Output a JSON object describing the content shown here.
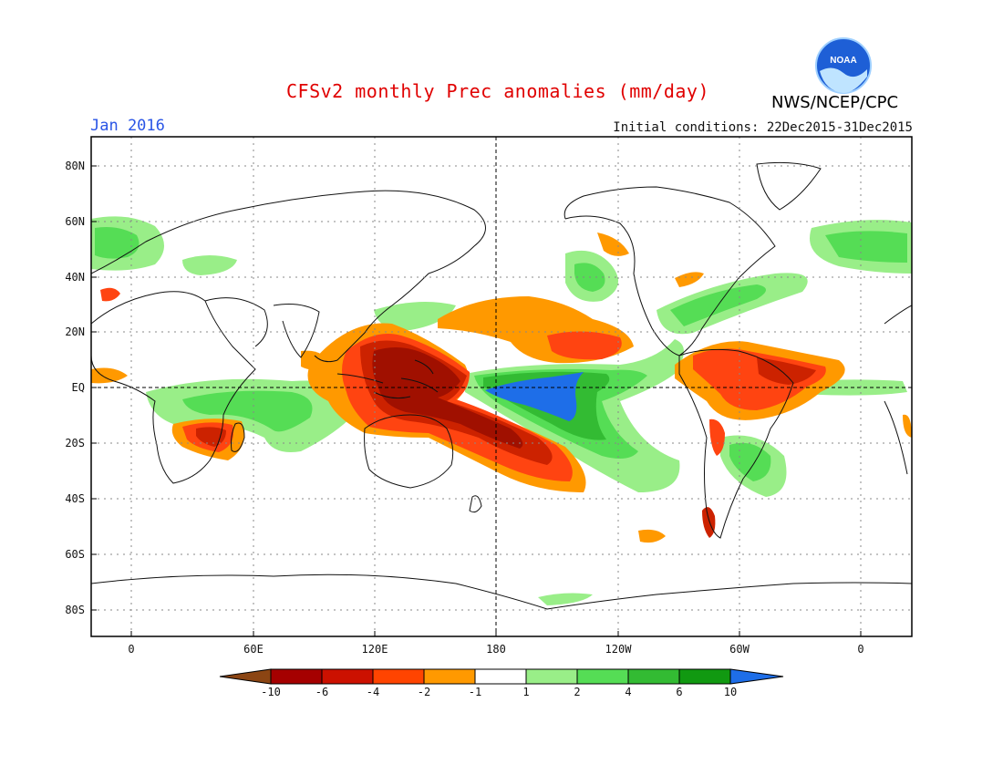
{
  "header": {
    "title": "CFSv2 monthly Prec anomalies (mm/day)",
    "month": "Jan 2016",
    "initial_conditions": "Initial conditions: 22Dec2015-31Dec2015",
    "agency": "NWS/NCEP/CPC",
    "logo_text": "NOAA"
  },
  "axes": {
    "lat_labels": [
      "80N",
      "60N",
      "40N",
      "20N",
      "EQ",
      "20S",
      "40S",
      "60S",
      "80S"
    ],
    "lon_labels": [
      "0",
      "60E",
      "120E",
      "180",
      "120W",
      "60W",
      "0"
    ]
  },
  "colorbar": {
    "tick_labels": [
      "-10",
      "-6",
      "-4",
      "-2",
      "-1",
      "1",
      "2",
      "4",
      "6",
      "10"
    ],
    "colors": [
      "#8b4513",
      "#a50000",
      "#cc1100",
      "#ff4400",
      "#ff9900",
      "#ffffff",
      "#99ee88",
      "#55dd55",
      "#33bb33",
      "#119911",
      "#1e6ee8"
    ]
  },
  "colors": {
    "title": "#e00000",
    "month": "#2a55e6",
    "strong_dry": "#a01000",
    "dry": "#cc2200",
    "moderate_dry": "#ff4411",
    "weak_dry": "#ff9900",
    "weak_wet": "#99ee88",
    "moderate_wet": "#55dd55",
    "wet": "#33bb33",
    "very_wet": "#1e6ee8"
  }
}
